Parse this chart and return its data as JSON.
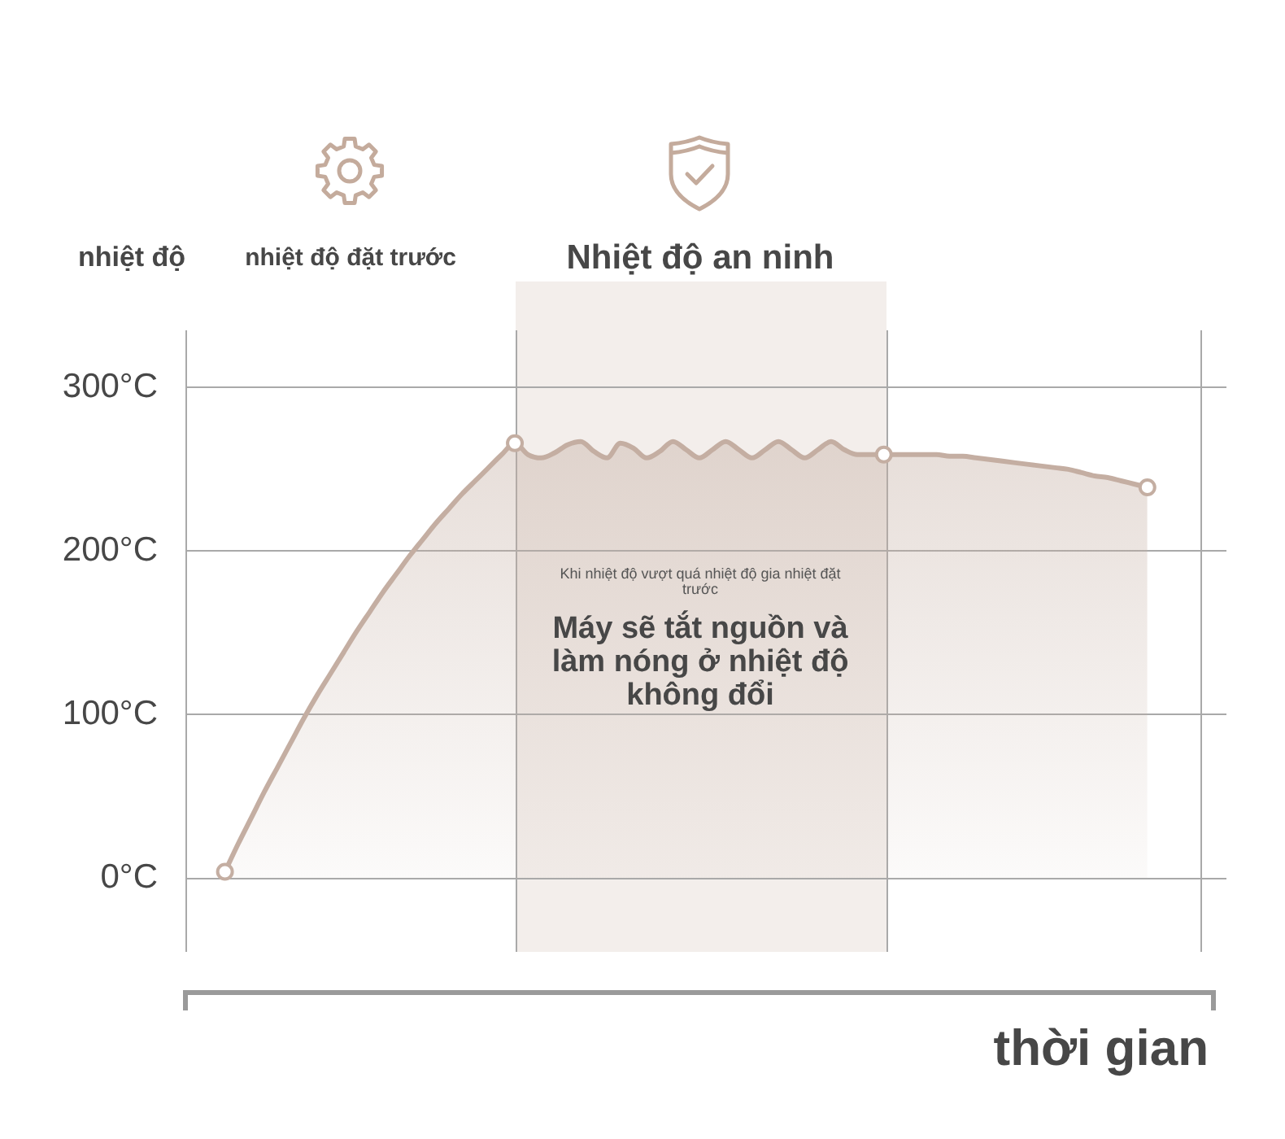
{
  "chart_data": {
    "type": "area",
    "ylabel": "nhiệt độ",
    "xlabel": "thời gian",
    "categories": [
      null,
      null,
      null,
      null,
      null,
      null,
      null,
      null,
      null,
      null,
      null,
      null,
      null,
      null,
      null,
      null,
      null,
      null,
      null,
      null,
      null,
      null,
      null,
      null,
      null,
      null,
      null,
      null,
      null,
      null,
      null,
      null,
      null,
      null,
      null,
      null,
      null,
      null,
      null,
      null,
      null,
      null,
      null,
      null,
      null,
      null,
      null,
      null,
      null,
      null,
      null,
      null,
      null,
      null,
      null,
      null,
      null,
      null,
      null,
      null,
      null,
      null,
      null,
      null,
      null,
      null,
      null,
      null,
      null,
      null,
      null,
      null,
      null,
      null,
      null,
      null,
      null,
      null,
      null,
      null
    ],
    "series": [
      {
        "color": "#c4aea2",
        "marker": "none",
        "line_style": "solid",
        "values": [
          null,
          null,
          null,
          4,
          21,
          37,
          53,
          68,
          83,
          98,
          112,
          125,
          138,
          151,
          163,
          175,
          186,
          197,
          207,
          217,
          226,
          235,
          243,
          251,
          259,
          266,
          259,
          257,
          260,
          265,
          267,
          261,
          257,
          266,
          263,
          257,
          261,
          267,
          262,
          257,
          262,
          267,
          262,
          257,
          262,
          267,
          262,
          257,
          262,
          267,
          262,
          259,
          259,
          259,
          259,
          259,
          259,
          259,
          258,
          258,
          257,
          256,
          255,
          254,
          253,
          252,
          251,
          250,
          248,
          246,
          245,
          243,
          241,
          239,
          null,
          null,
          null,
          null,
          null,
          null
        ]
      },
      {
        "type": "scatter",
        "color": "#c4aea2",
        "marker": "circle",
        "values": [
          null,
          null,
          null,
          4,
          null,
          null,
          null,
          null,
          null,
          null,
          null,
          null,
          null,
          null,
          null,
          null,
          null,
          null,
          null,
          null,
          null,
          null,
          null,
          null,
          null,
          266,
          null,
          null,
          null,
          null,
          null,
          null,
          null,
          null,
          null,
          null,
          null,
          null,
          null,
          null,
          null,
          null,
          null,
          null,
          null,
          null,
          null,
          null,
          null,
          null,
          null,
          null,
          null,
          259,
          null,
          null,
          null,
          null,
          null,
          null,
          null,
          null,
          null,
          null,
          null,
          null,
          null,
          null,
          null,
          null,
          null,
          null,
          null,
          239,
          null,
          null,
          null,
          null,
          null,
          null
        ]
      }
    ],
    "ylim": [
      -45,
      335
    ],
    "yticks": [
      {
        "value": 0,
        "label": "0°C"
      },
      {
        "value": 100,
        "label": "100°C"
      },
      {
        "value": 200,
        "label": "200°C"
      },
      {
        "value": 300,
        "label": "300°C"
      }
    ],
    "grid": "y",
    "tick_labels": "y",
    "annotations": [
      "nhiệt độ đặt trước",
      "Nhiệt độ an ninh",
      "Khi nhiệt độ vượt quá nhiệt độ gia nhiệt đặt trước",
      "Máy sẽ tắt nguồn và làm nóng ở nhiệt độ không đổi"
    ]
  }
}
